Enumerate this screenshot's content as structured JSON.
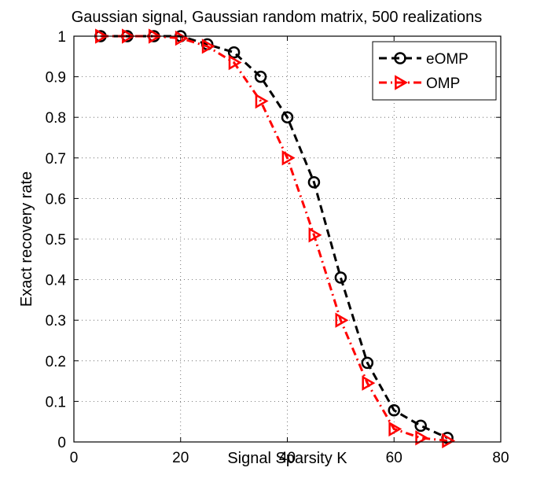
{
  "chart_data": {
    "type": "line",
    "title": "Gaussian signal, Gaussian random matrix, 500 realizations",
    "xlabel": "Signal Sparsity K",
    "ylabel": "Exact recovery rate",
    "xlim": [
      0,
      80
    ],
    "ylim": [
      0,
      1
    ],
    "xticks": [
      0,
      20,
      40,
      60,
      80
    ],
    "yticks": [
      0,
      0.1,
      0.2,
      0.3,
      0.4,
      0.5,
      0.6,
      0.7,
      0.8,
      0.9,
      1
    ],
    "grid": true,
    "legend_position": "top-right",
    "series": [
      {
        "name": "eOMP",
        "color": "#000000",
        "line_style": "dashed",
        "marker": "circle",
        "x": [
          5,
          10,
          15,
          20,
          25,
          30,
          35,
          40,
          45,
          50,
          55,
          60,
          65,
          70
        ],
        "y": [
          1.0,
          1.0,
          1.0,
          1.0,
          0.98,
          0.96,
          0.9,
          0.8,
          0.64,
          0.405,
          0.195,
          0.078,
          0.04,
          0.01
        ]
      },
      {
        "name": "OMP",
        "color": "#ff0000",
        "line_style": "dash-dot",
        "marker": "triangle-right",
        "x": [
          5,
          10,
          15,
          20,
          25,
          30,
          35,
          40,
          45,
          50,
          55,
          60,
          65,
          70
        ],
        "y": [
          1.0,
          1.0,
          1.0,
          0.995,
          0.975,
          0.935,
          0.84,
          0.7,
          0.51,
          0.3,
          0.145,
          0.032,
          0.01,
          0.003
        ]
      }
    ]
  }
}
